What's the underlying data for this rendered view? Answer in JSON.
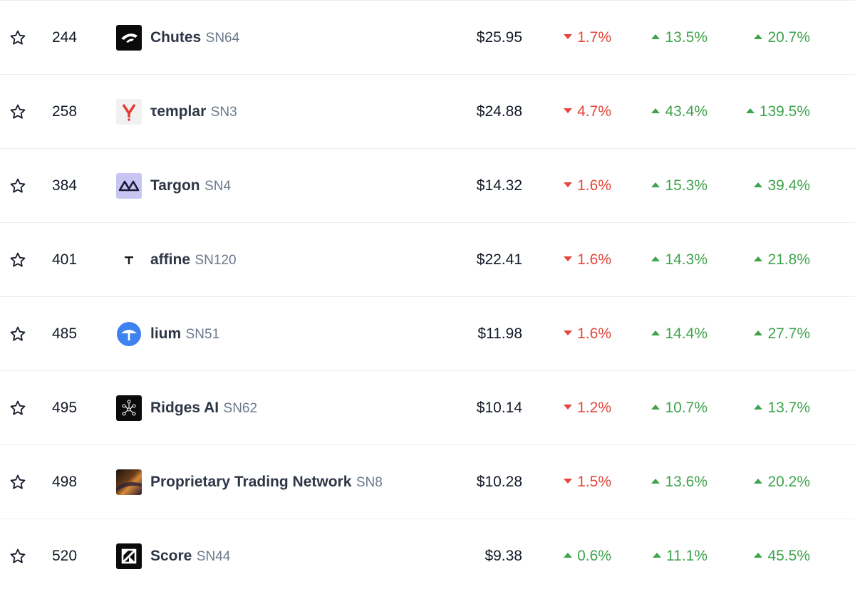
{
  "colors": {
    "positive": "#3fa34d",
    "negative": "#e5453b",
    "name": "#2e3646",
    "subnet": "#6b7a8c"
  },
  "rows": [
    {
      "rank": "244",
      "name": "Chutes",
      "subnet": "SN64",
      "price": "$25.95",
      "logo": "chutes-logo-icon",
      "change_1": {
        "value": "1.7%",
        "direction": "down"
      },
      "change_2": {
        "value": "13.5%",
        "direction": "up"
      },
      "change_3": {
        "value": "20.7%",
        "direction": "up"
      }
    },
    {
      "rank": "258",
      "name": "τemplar",
      "subnet": "SN3",
      "price": "$24.88",
      "logo": "templar-logo-icon",
      "change_1": {
        "value": "4.7%",
        "direction": "down"
      },
      "change_2": {
        "value": "43.4%",
        "direction": "up"
      },
      "change_3": {
        "value": "139.5%",
        "direction": "up"
      }
    },
    {
      "rank": "384",
      "name": "Targon",
      "subnet": "SN4",
      "price": "$14.32",
      "logo": "targon-logo-icon",
      "change_1": {
        "value": "1.6%",
        "direction": "down"
      },
      "change_2": {
        "value": "15.3%",
        "direction": "up"
      },
      "change_3": {
        "value": "39.4%",
        "direction": "up"
      }
    },
    {
      "rank": "401",
      "name": "affine",
      "subnet": "SN120",
      "price": "$22.41",
      "logo": "affine-logo-icon",
      "change_1": {
        "value": "1.6%",
        "direction": "down"
      },
      "change_2": {
        "value": "14.3%",
        "direction": "up"
      },
      "change_3": {
        "value": "21.8%",
        "direction": "up"
      }
    },
    {
      "rank": "485",
      "name": "lium",
      "subnet": "SN51",
      "price": "$11.98",
      "logo": "lium-logo-icon",
      "change_1": {
        "value": "1.6%",
        "direction": "down"
      },
      "change_2": {
        "value": "14.4%",
        "direction": "up"
      },
      "change_3": {
        "value": "27.7%",
        "direction": "up"
      }
    },
    {
      "rank": "495",
      "name": "Ridges AI",
      "subnet": "SN62",
      "price": "$10.14",
      "logo": "ridges-logo-icon",
      "change_1": {
        "value": "1.2%",
        "direction": "down"
      },
      "change_2": {
        "value": "10.7%",
        "direction": "up"
      },
      "change_3": {
        "value": "13.7%",
        "direction": "up"
      }
    },
    {
      "rank": "498",
      "name": "Proprietary Trading Network",
      "subnet": "SN8",
      "price": "$10.28",
      "logo": "ptn-logo-icon",
      "change_1": {
        "value": "1.5%",
        "direction": "down"
      },
      "change_2": {
        "value": "13.6%",
        "direction": "up"
      },
      "change_3": {
        "value": "20.2%",
        "direction": "up"
      }
    },
    {
      "rank": "520",
      "name": "Score",
      "subnet": "SN44",
      "price": "$9.38",
      "logo": "score-logo-icon",
      "change_1": {
        "value": "0.6%",
        "direction": "up"
      },
      "change_2": {
        "value": "11.1%",
        "direction": "up"
      },
      "change_3": {
        "value": "45.5%",
        "direction": "up"
      }
    }
  ]
}
